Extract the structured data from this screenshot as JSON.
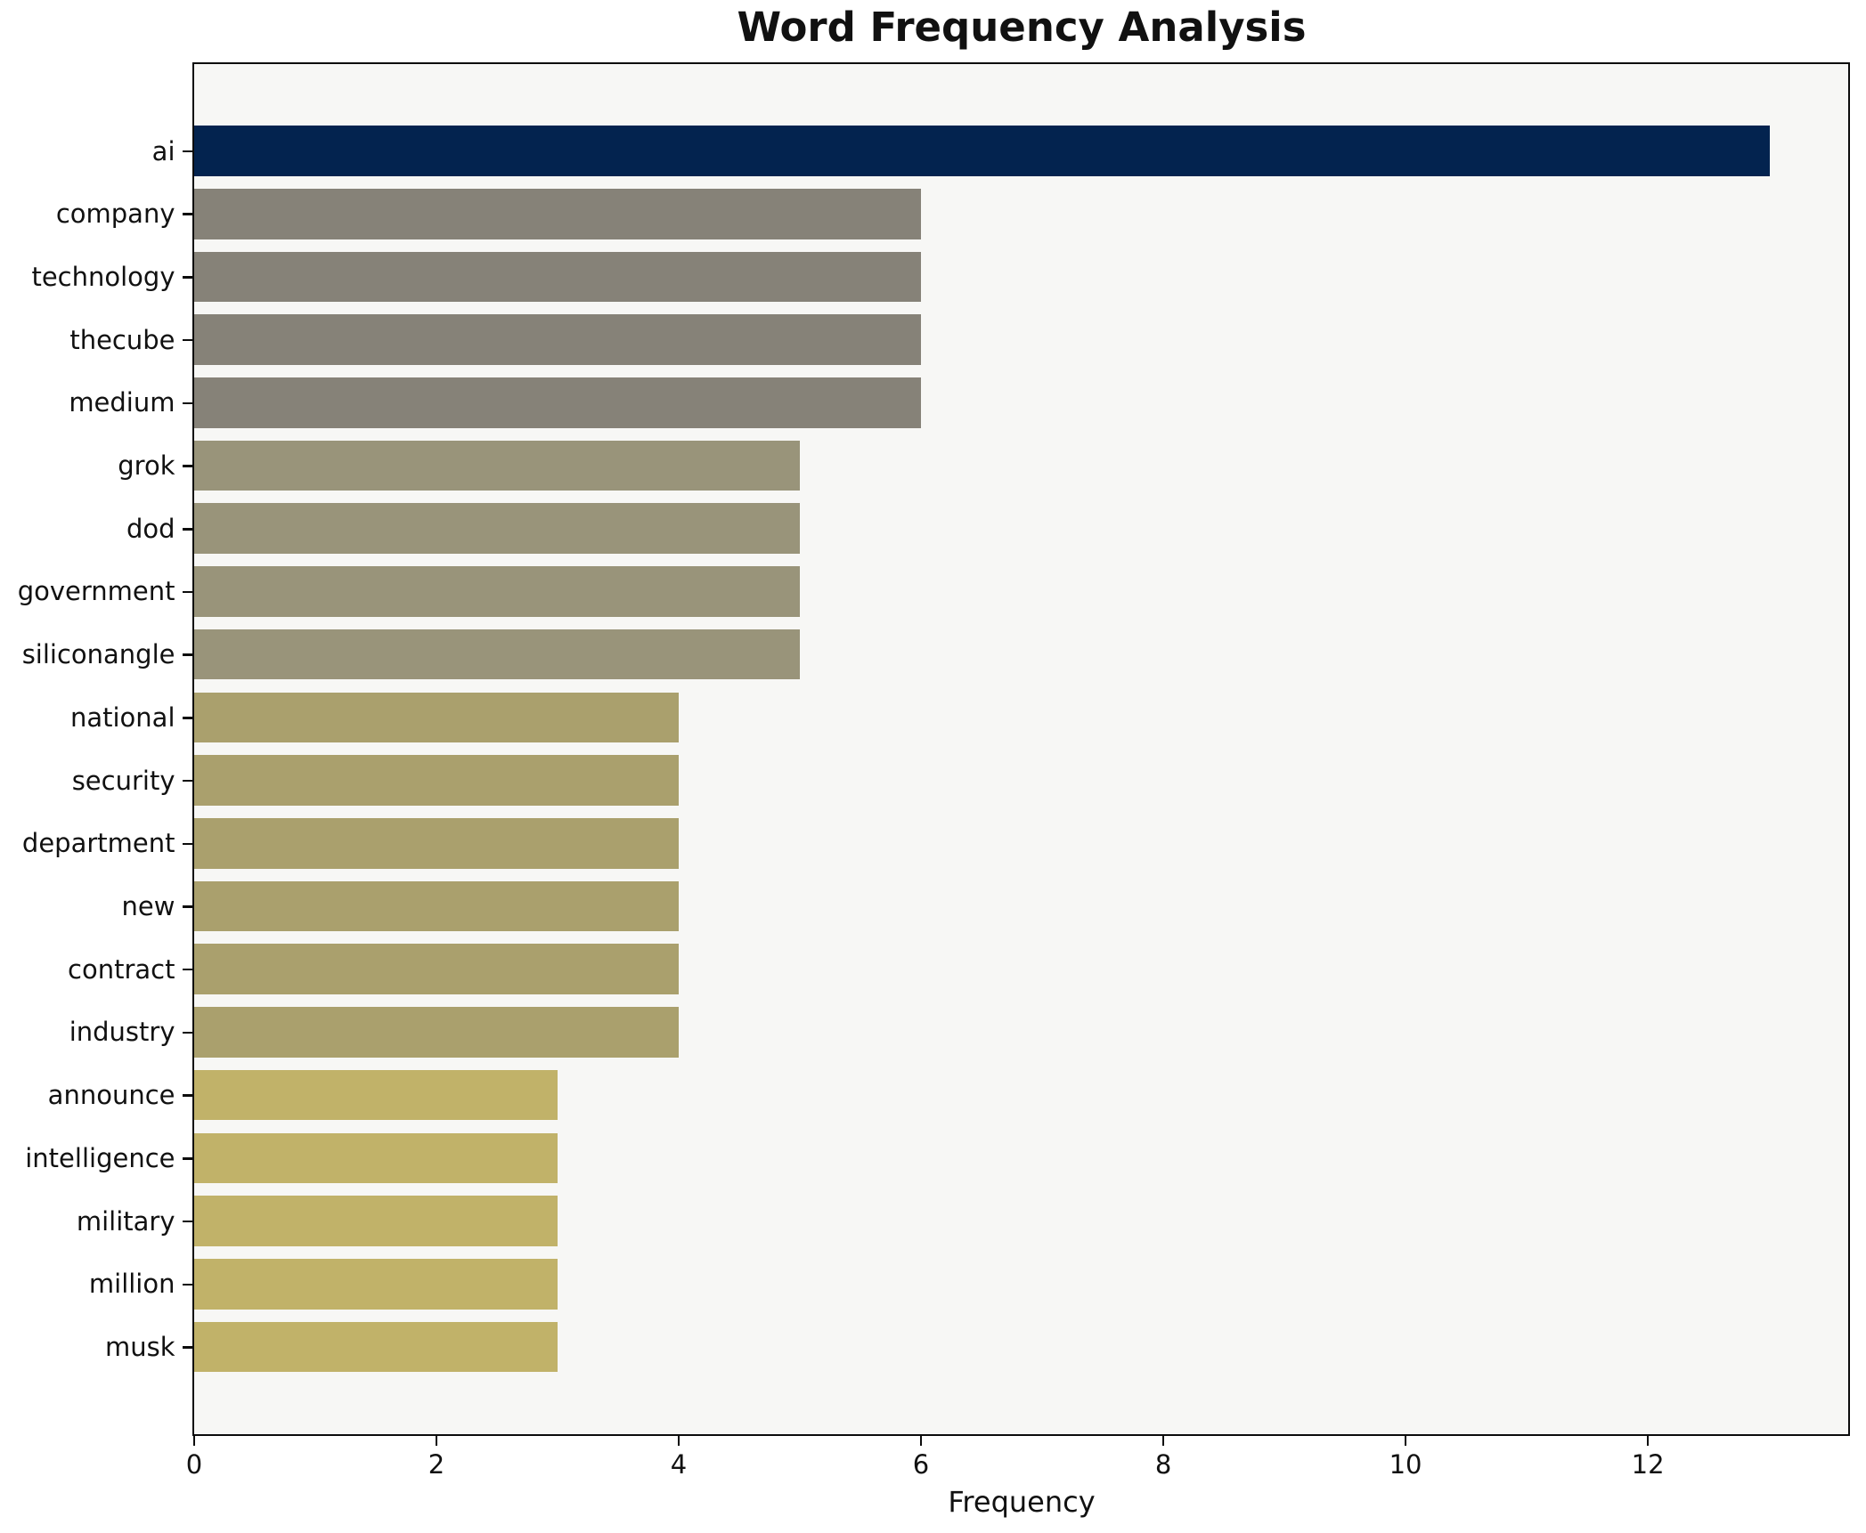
{
  "chart_data": {
    "type": "bar",
    "orientation": "horizontal",
    "title": "Word Frequency Analysis",
    "xlabel": "Frequency",
    "ylabel": "",
    "categories": [
      "ai",
      "company",
      "technology",
      "thecube",
      "medium",
      "grok",
      "dod",
      "government",
      "siliconangle",
      "national",
      "security",
      "department",
      "new",
      "contract",
      "industry",
      "announce",
      "intelligence",
      "military",
      "million",
      "musk"
    ],
    "values": [
      13,
      6,
      6,
      6,
      6,
      5,
      5,
      5,
      5,
      4,
      4,
      4,
      4,
      4,
      4,
      3,
      3,
      3,
      3,
      3
    ],
    "bar_colors": [
      "#03234f",
      "#868278",
      "#868278",
      "#868278",
      "#868278",
      "#99947a",
      "#99947a",
      "#99947a",
      "#99947a",
      "#aaa06d",
      "#aaa06d",
      "#aaa06d",
      "#aaa06d",
      "#aaa06d",
      "#aaa06d",
      "#c1b269",
      "#c1b269",
      "#c1b269",
      "#c1b269",
      "#c1b269"
    ],
    "x_ticks": [
      0,
      2,
      4,
      6,
      8,
      10,
      12
    ],
    "xlim": [
      0,
      13.65
    ],
    "grid": false,
    "legend": null,
    "plot_background": "#f7f7f5",
    "figure_background": "#ffffff",
    "spine_color": "#0c0c0c",
    "text_color": "#111111"
  }
}
